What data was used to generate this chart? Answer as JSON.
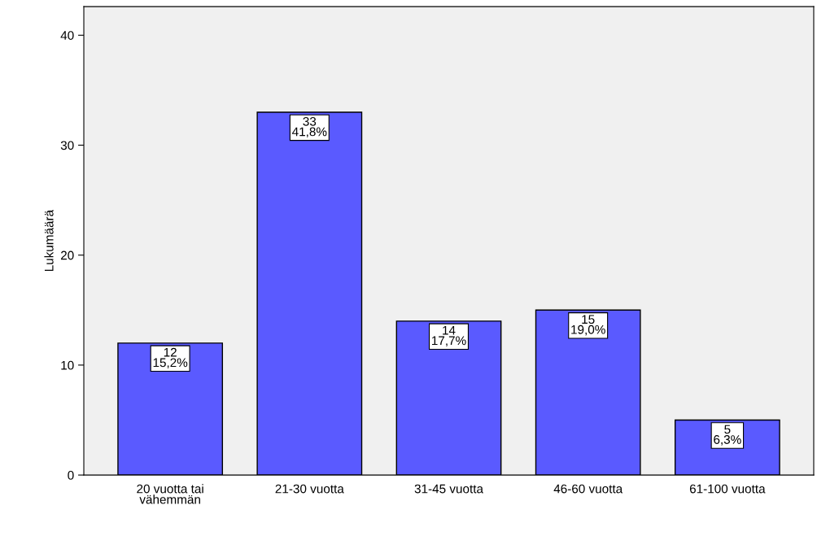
{
  "chart_data": {
    "type": "bar",
    "ylabel": "Lukumäärä",
    "categories": [
      "20 vuotta tai\nvähemmän",
      "21-30 vuotta",
      "31-45 vuotta",
      "46-60 vuotta",
      "61-100 vuotta"
    ],
    "values": [
      12,
      33,
      14,
      15,
      5
    ],
    "value_labels": [
      "12\n15,2%",
      "33\n41,8%",
      "14\n17,7%",
      "15\n19,0%",
      "5\n6,3%"
    ],
    "color": "#5a5aff",
    "ylim": [
      0,
      42.6
    ],
    "yticks": [
      0,
      10,
      20,
      30,
      40
    ],
    "grid": false,
    "legend": false
  }
}
